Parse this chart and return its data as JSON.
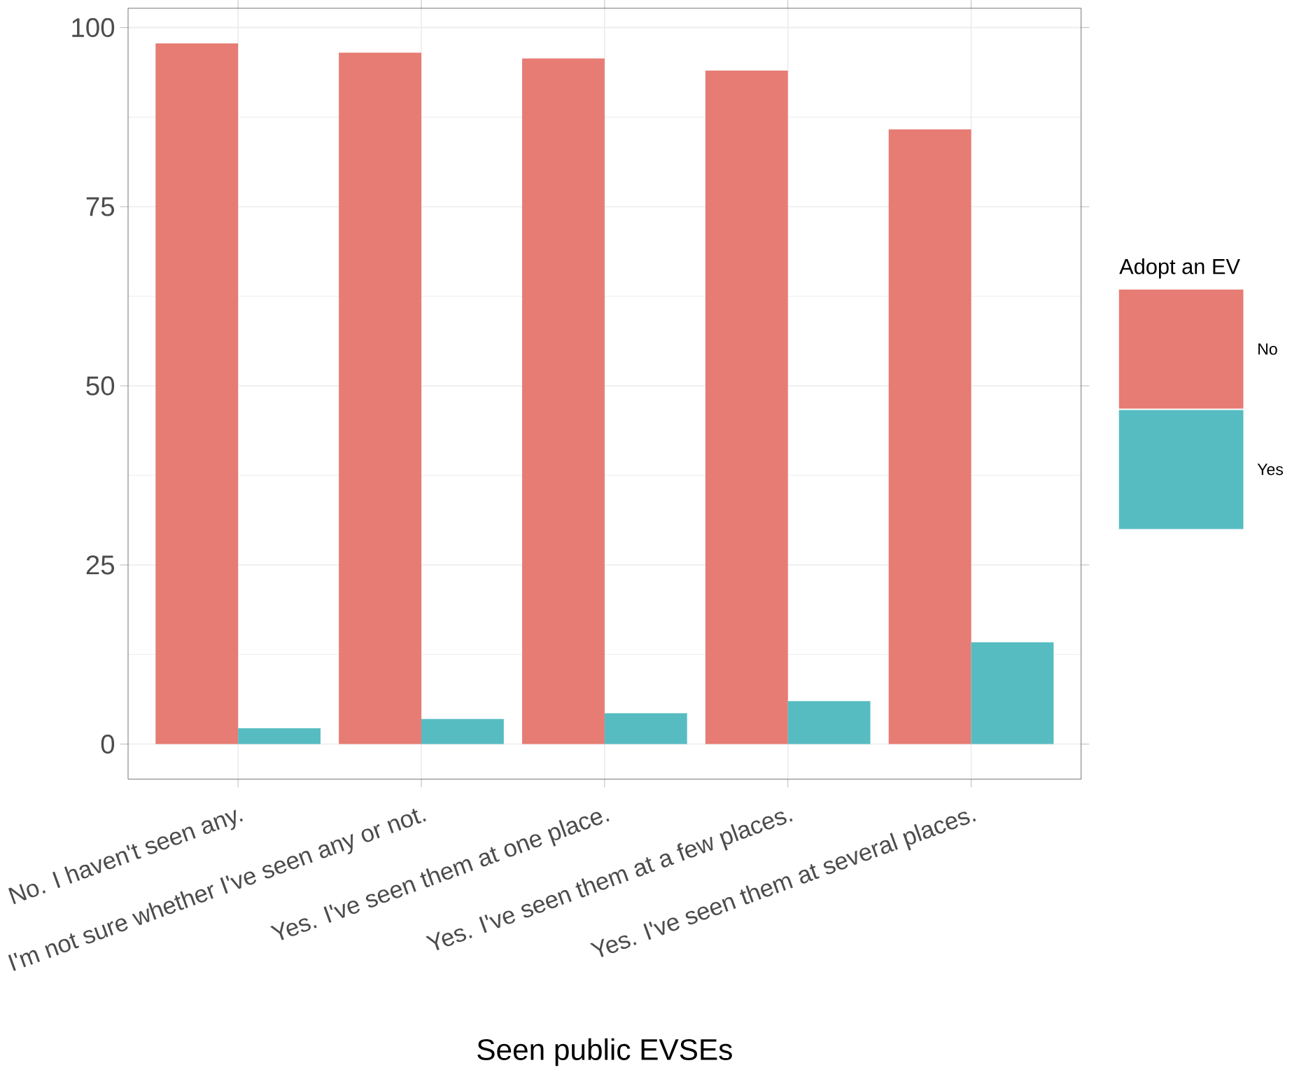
{
  "chart_data": {
    "type": "bar",
    "xlabel": "Seen public EVSEs",
    "legend_title": "Adopt an EV",
    "categories": [
      "No. I haven't seen any.",
      "I'm not sure whether I've seen any or not.",
      "Yes. I've seen them at one place.",
      "Yes. I've seen them at a few places.",
      "Yes. I've seen them at several places."
    ],
    "series": [
      {
        "name": "No",
        "color": "#e67c73",
        "values": [
          97.8,
          96.5,
          95.7,
          94.0,
          85.8
        ]
      },
      {
        "name": "Yes",
        "color": "#56bcc2",
        "values": [
          2.2,
          3.5,
          4.3,
          6.0,
          14.2
        ]
      }
    ],
    "ylim": [
      -4.9,
      102.7
    ],
    "yticks": [
      0,
      25,
      50,
      75,
      100
    ],
    "grid": true,
    "legend": "right"
  }
}
